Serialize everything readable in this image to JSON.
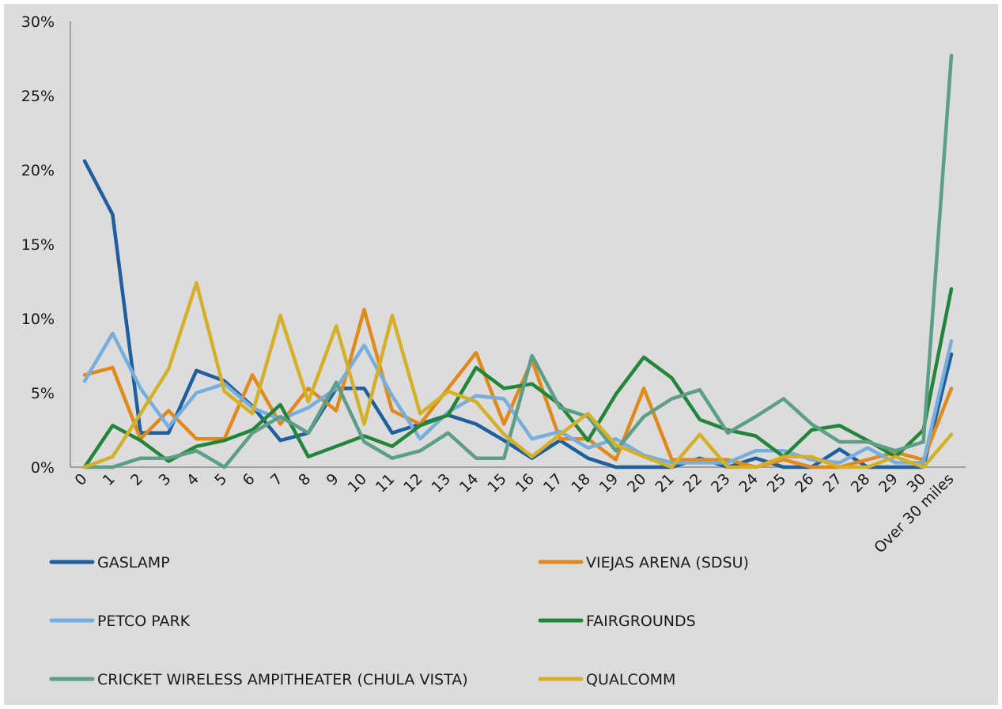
{
  "chart_data": {
    "type": "line",
    "title": "",
    "xlabel": "",
    "ylabel": "",
    "categories": [
      "0",
      "1",
      "2",
      "3",
      "4",
      "5",
      "6",
      "7",
      "8",
      "9",
      "10",
      "11",
      "12",
      "13",
      "14",
      "15",
      "16",
      "17",
      "18",
      "19",
      "20",
      "21",
      "22",
      "23",
      "24",
      "25",
      "26",
      "27",
      "28",
      "29",
      "30",
      "Over 30 miles"
    ],
    "y_ticks": [
      "0%",
      "5%",
      "10%",
      "15%",
      "20%",
      "25%",
      "30%"
    ],
    "ylim": [
      0,
      30
    ],
    "grid": false,
    "legend_position": "bottom",
    "series": [
      {
        "name": "GASLAMP",
        "color": "#1f5f9e",
        "values": [
          20.6,
          17,
          2.3,
          2.3,
          6.5,
          5.8,
          4.1,
          1.8,
          2.3,
          5.3,
          5.3,
          2.3,
          2.9,
          3.5,
          2.9,
          1.8,
          0.6,
          1.8,
          0.6,
          0,
          0,
          0,
          0.6,
          0,
          0.6,
          0,
          0,
          1.2,
          0,
          0,
          0,
          7.6
        ]
      },
      {
        "name": "VIEJAS ARENA (SDSU)",
        "color": "#e08a1e",
        "values": [
          6.2,
          6.7,
          1.9,
          3.8,
          1.9,
          1.9,
          6.2,
          2.9,
          5.3,
          3.8,
          10.6,
          3.8,
          2.9,
          5.3,
          7.7,
          2.9,
          7.2,
          1.9,
          1.9,
          0.5,
          5.3,
          0.5,
          0.5,
          0.5,
          0,
          0.5,
          0,
          0,
          0.5,
          1,
          0.5,
          5.3
        ]
      },
      {
        "name": "PETCO PARK",
        "color": "#78aedb",
        "values": [
          5.8,
          9,
          5.3,
          2.7,
          5,
          5.6,
          4,
          3.2,
          4,
          5.3,
          8.2,
          4.8,
          1.9,
          3.7,
          4.8,
          4.6,
          1.9,
          2.4,
          1.3,
          1.9,
          0.8,
          0.3,
          0.3,
          0.3,
          1.1,
          1.1,
          0.5,
          0.3,
          1.3,
          0.3,
          0.3,
          8.5
        ]
      },
      {
        "name": "FAIRGROUNDS",
        "color": "#23853a",
        "values": [
          0,
          2.8,
          1.8,
          0.4,
          1.4,
          1.8,
          2.5,
          4.2,
          0.7,
          1.4,
          2.1,
          1.4,
          2.8,
          3.5,
          6.7,
          5.3,
          5.6,
          4.2,
          1.8,
          4.9,
          7.4,
          6,
          3.2,
          2.5,
          2.1,
          0.7,
          2.5,
          2.8,
          1.8,
          0.7,
          2.5,
          12
        ]
      },
      {
        "name": "CRICKET WIRELESS AMPITHEATER (CHULA VISTA)",
        "color": "#5c9e87",
        "values": [
          0,
          0,
          0.6,
          0.6,
          1.1,
          0,
          2.3,
          3.4,
          2.3,
          5.7,
          1.7,
          0.6,
          1.1,
          2.3,
          0.6,
          0.6,
          7.5,
          4,
          3.4,
          1.1,
          3.4,
          4.6,
          5.2,
          2.3,
          3.4,
          4.6,
          2.9,
          1.7,
          1.7,
          1.1,
          1.7,
          27.7
        ]
      },
      {
        "name": "QUALCOMM",
        "color": "#d4b02a",
        "values": [
          0,
          0.7,
          3.6,
          6.6,
          12.4,
          5.1,
          3.6,
          10.2,
          4.4,
          9.5,
          2.9,
          10.2,
          3.6,
          5.1,
          4.4,
          2.2,
          0.7,
          2.2,
          3.6,
          1.5,
          0.7,
          0,
          2.2,
          0,
          0,
          0.7,
          0.7,
          0,
          0,
          0.7,
          0,
          2.2
        ]
      }
    ]
  }
}
